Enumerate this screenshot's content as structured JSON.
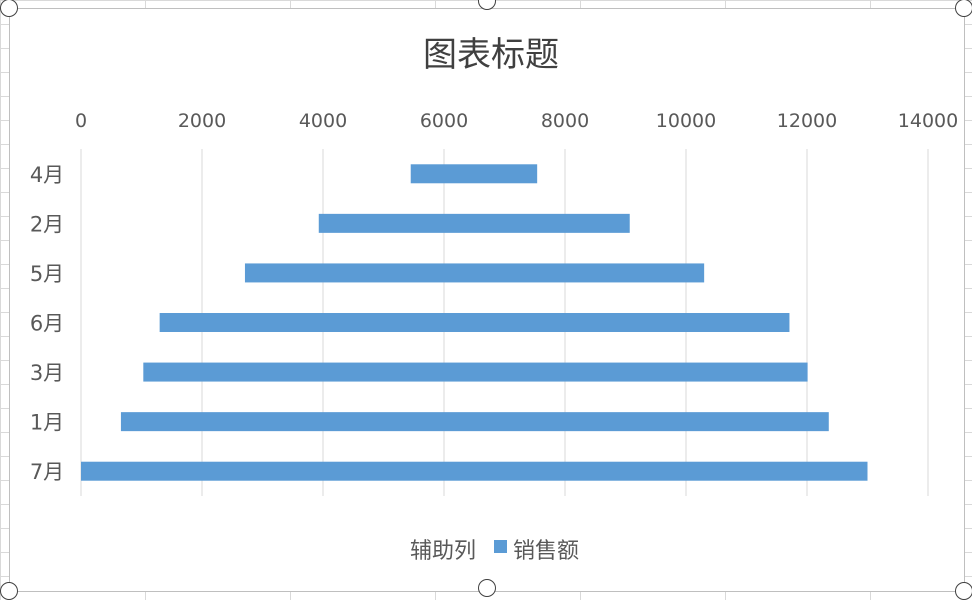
{
  "chart_data": {
    "type": "bar",
    "orientation": "horizontal",
    "stacked": true,
    "title": "图表标题",
    "categories": [
      "4月",
      "2月",
      "5月",
      "6月",
      "3月",
      "1月",
      "7月"
    ],
    "series": [
      {
        "name": "辅助列",
        "values": [
          5450,
          3930,
          2710,
          1300,
          1030,
          660,
          0
        ],
        "color": "none"
      },
      {
        "name": "销售额",
        "values": [
          2090,
          5140,
          7590,
          10410,
          10980,
          11700,
          13000
        ],
        "color": "#5b9bd5"
      }
    ],
    "x_ticks": [
      "0",
      "2000",
      "4000",
      "6000",
      "8000",
      "10000",
      "12000",
      "14000"
    ],
    "xlim": [
      0,
      14000
    ],
    "x_axis_position": "top",
    "grid": true,
    "legend_position": "bottom"
  }
}
